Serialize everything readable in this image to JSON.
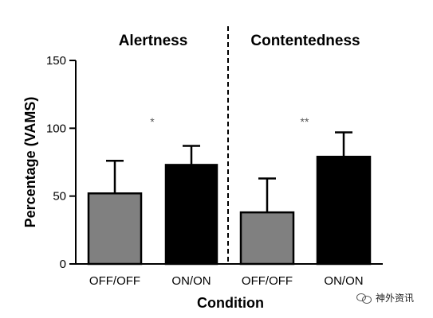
{
  "chart_data": {
    "type": "bar",
    "categories": [
      "OFF/OFF",
      "ON/ON",
      "OFF/OFF",
      "ON/ON"
    ],
    "panels": [
      {
        "title": "Alertness",
        "bars": [
          {
            "category": "OFF/OFF",
            "value": 52,
            "error": 24,
            "color": "#808080"
          },
          {
            "category": "ON/ON",
            "value": 73,
            "error": 14,
            "color": "#000000"
          }
        ],
        "significance": "*"
      },
      {
        "title": "Contentedness",
        "bars": [
          {
            "category": "OFF/OFF",
            "value": 38,
            "error": 25,
            "color": "#808080"
          },
          {
            "category": "ON/ON",
            "value": 79,
            "error": 18,
            "color": "#000000"
          }
        ],
        "significance": "**"
      }
    ],
    "xlabel": "Condition",
    "ylabel": "Percentage (VAMS)",
    "ylim": [
      0,
      150
    ],
    "yticks": [
      0,
      50,
      100,
      150
    ],
    "grid": false,
    "divider": "dashed"
  },
  "watermark": {
    "text": "神外资讯",
    "icon": "wechat-icon"
  }
}
